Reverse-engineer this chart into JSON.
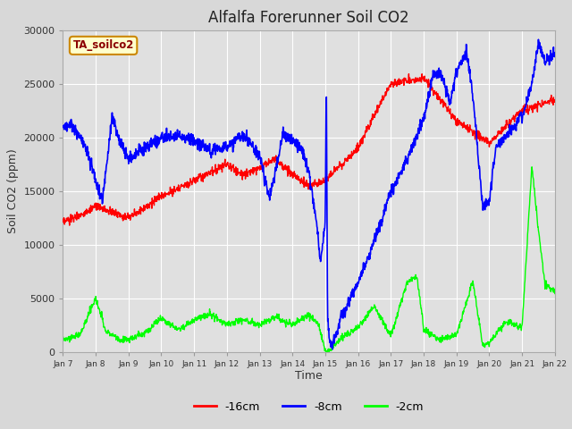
{
  "title": "Alfalfa Forerunner Soil CO2",
  "ylabel": "Soil CO2 (ppm)",
  "xlabel": "Time",
  "ylim": [
    0,
    30000
  ],
  "fig_bg_color": "#d8d8d8",
  "plot_bg_color": "#e0e0e0",
  "legend_label": "TA_soilco2",
  "series": {
    "red_label": "-16cm",
    "blue_label": "-8cm",
    "green_label": "-2cm"
  },
  "xtick_labels": [
    "Jan 7",
    "Jan 8",
    "Jan 9",
    "Jan 10",
    "Jan 11",
    "Jan 12",
    "Jan 13",
    "Jan 14",
    "Jan 15",
    "Jan 16",
    "Jan 17",
    "Jan 18",
    "Jan 19",
    "Jan 20",
    "Jan 21",
    "Jan 22"
  ],
  "ytick_values": [
    0,
    5000,
    10000,
    15000,
    20000,
    25000,
    30000
  ]
}
